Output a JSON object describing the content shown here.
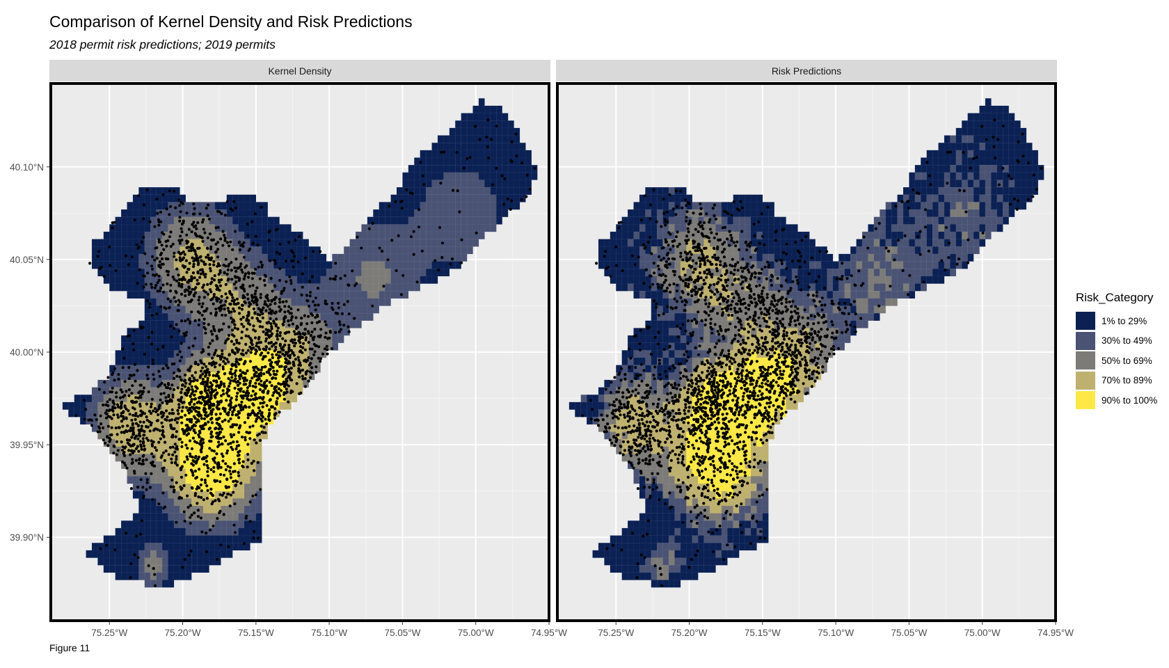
{
  "header": {
    "title": "Comparison of Kernel Density and Risk Predictions",
    "subtitle": "2018 permit risk predictions; 2019 permits"
  },
  "caption": "Figure 11",
  "legend": {
    "title": "Risk_Category",
    "items": [
      {
        "label": "1% to 29%",
        "color": "#0b2154"
      },
      {
        "label": "30% to 49%",
        "color": "#4a5374"
      },
      {
        "label": "50% to 69%",
        "color": "#7c7b78"
      },
      {
        "label": "70% to 89%",
        "color": "#beb06e"
      },
      {
        "label": "90% to 100%",
        "color": "#fde845"
      }
    ]
  },
  "chart_data": {
    "type": "heatmap",
    "facets": [
      "Kernel Density",
      "Risk Predictions"
    ],
    "x_ticks": [
      "75.25°W",
      "75.20°W",
      "75.15°W",
      "75.10°W",
      "75.05°W",
      "75.00°W",
      "74.95°W"
    ],
    "x_tick_values": [
      -75.25,
      -75.2,
      -75.15,
      -75.1,
      -75.05,
      -75.0,
      -74.95
    ],
    "y_ticks": [
      "40.10°N",
      "40.05°N",
      "40.00°N",
      "39.95°N",
      "39.90°N"
    ],
    "y_tick_values": [
      40.1,
      40.05,
      40.0,
      39.95,
      39.9
    ],
    "xlim": [
      -75.29,
      -74.95
    ],
    "ylim": [
      39.855,
      40.145
    ],
    "fill_variable": "Risk_Category",
    "points": "2019 permits",
    "grid": true,
    "legend_position": "right"
  }
}
